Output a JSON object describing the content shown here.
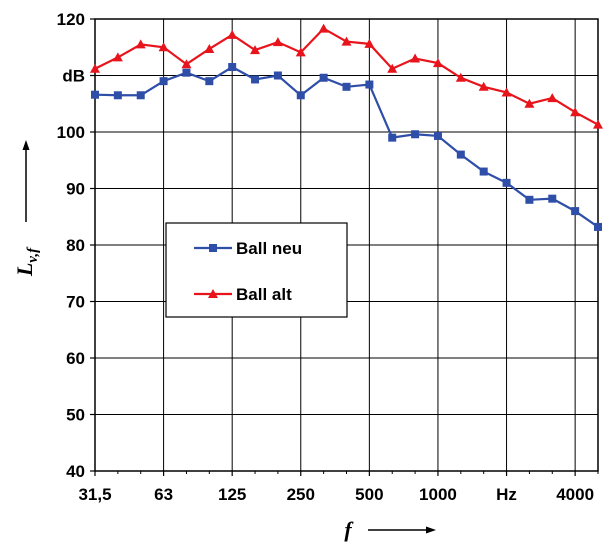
{
  "chart_data": {
    "type": "line",
    "x": [
      "31,5",
      "40",
      "50",
      "63",
      "80",
      "100",
      "125",
      "160",
      "200",
      "250",
      "315",
      "400",
      "500",
      "630",
      "800",
      "1000",
      "1250",
      "1600",
      "2000",
      "2500",
      "3150",
      "4000",
      "5000"
    ],
    "x_tick_labels": [
      "31,5",
      "63",
      "125",
      "250",
      "500",
      "1000",
      "Hz",
      "4000"
    ],
    "y_tick_labels": [
      "40",
      "50",
      "60",
      "70",
      "80",
      "90",
      "100",
      "dB",
      "120"
    ],
    "ylim": [
      40,
      120
    ],
    "xlabel": "f",
    "ylabel": "L",
    "ylabel_sub": "v,f",
    "grid": true,
    "legend_position": "center-left",
    "series": [
      {
        "name": "Ball neu",
        "color": "#2e4ea8",
        "marker": "square",
        "values": [
          106.6,
          106.5,
          106.5,
          109.0,
          110.5,
          109.0,
          111.5,
          109.3,
          110.0,
          106.5,
          109.6,
          108.0,
          108.4,
          99.0,
          99.6,
          99.3,
          96.0,
          93.0,
          91.0,
          88.0,
          88.2,
          86.0,
          83.2
        ]
      },
      {
        "name": "Ball alt",
        "color": "#e8141c",
        "marker": "triangle",
        "values": [
          111.2,
          113.2,
          115.5,
          115.0,
          112.0,
          114.7,
          117.2,
          114.5,
          115.9,
          114.1,
          118.3,
          116.0,
          115.6,
          111.2,
          113.0,
          112.2,
          109.6,
          108.0,
          107.0,
          105.0,
          106.0,
          103.5,
          101.3
        ]
      }
    ]
  }
}
